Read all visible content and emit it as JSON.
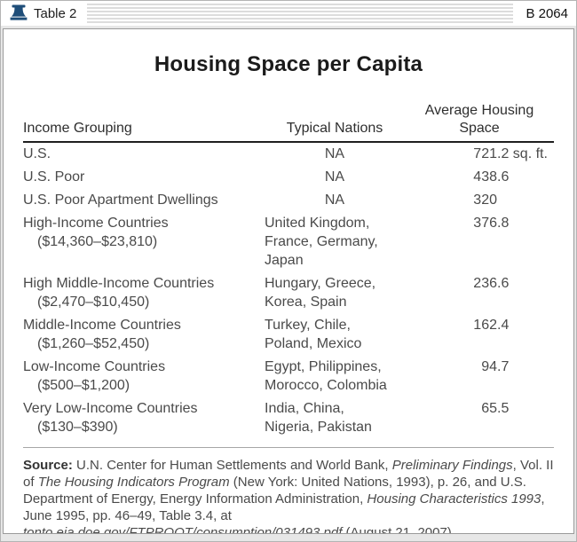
{
  "frame": {
    "bar_left_label": "Table 2",
    "bar_right_label": "B 2064"
  },
  "table": {
    "title": "Housing Space per Capita",
    "col1_header": "Income Grouping",
    "col2_header": "Typical Nations",
    "col3_header_line1": "Average Housing",
    "col3_header_line2": "Space",
    "rows": [
      {
        "grouping": [
          "U.S."
        ],
        "nations": [
          "NA"
        ],
        "value": "721.2 sq. ft."
      },
      {
        "grouping": [
          "U.S. Poor"
        ],
        "nations": [
          "NA"
        ],
        "value": "438.6"
      },
      {
        "grouping": [
          "U.S. Poor Apartment Dwellings"
        ],
        "nations": [
          "NA"
        ],
        "value": "320"
      },
      {
        "grouping": [
          "High-Income Countries",
          "($14,360–$23,810)"
        ],
        "nations": [
          "United Kingdom,",
          "France, Germany, Japan"
        ],
        "value": "376.8"
      },
      {
        "grouping": [
          "High Middle-Income Countries",
          "($2,470–$10,450)"
        ],
        "nations": [
          "Hungary, Greece,",
          "Korea, Spain"
        ],
        "value": "236.6"
      },
      {
        "grouping": [
          "Middle-Income Countries",
          "($1,260–$52,450)"
        ],
        "nations": [
          "Turkey, Chile,",
          "Poland, Mexico"
        ],
        "value": "162.4"
      },
      {
        "grouping": [
          "Low-Income Countries",
          "($500–$1,200)"
        ],
        "nations": [
          "Egypt, Philippines,",
          "Morocco, Colombia"
        ],
        "value": "94.7"
      },
      {
        "grouping": [
          "Very Low-Income Countries",
          "($130–$390)"
        ],
        "nations": [
          "India, China,",
          "Nigeria, Pakistan"
        ],
        "value": "65.5"
      }
    ]
  },
  "source": {
    "segments": [
      {
        "text": "Source:",
        "style": "bold"
      },
      {
        "text": " U.N. Center for Human Settlements and World Bank, ",
        "style": "regular"
      },
      {
        "text": "Preliminary Findings",
        "style": "italic"
      },
      {
        "text": ", Vol. II of ",
        "style": "regular"
      },
      {
        "text": "The Housing Indicators Program",
        "style": "italic"
      },
      {
        "text": " (New York: United Nations, 1993), p. 26, and U.S. Department of Energy, Energy Information Administration, ",
        "style": "regular"
      },
      {
        "text": "Housing Characteristics 1993",
        "style": "italic"
      },
      {
        "text": ", June 1995, pp. 46–49, Table 3.4, at ",
        "style": "regular"
      },
      {
        "text": "tonto.eia.doe.gov/FTPROOT/consumption/031493.pdf",
        "style": "italic"
      },
      {
        "text": " (August 21, 2007).",
        "style": "regular"
      }
    ]
  },
  "chart_data": {
    "type": "table",
    "title": "Housing Space per Capita",
    "columns": [
      "Income Grouping",
      "Typical Nations",
      "Average Housing Space"
    ],
    "rows": [
      [
        "U.S.",
        "NA",
        "721.2 sq. ft."
      ],
      [
        "U.S. Poor",
        "NA",
        "438.6"
      ],
      [
        "U.S. Poor Apartment Dwellings",
        "NA",
        "320"
      ],
      [
        "High-Income Countries ($14,360–$23,810)",
        "United Kingdom, France, Germany, Japan",
        "376.8"
      ],
      [
        "High Middle-Income Countries ($2,470–$10,450)",
        "Hungary, Greece, Korea, Spain",
        "236.6"
      ],
      [
        "Middle-Income Countries ($1,260–$52,450)",
        "Turkey, Chile, Poland, Mexico",
        "162.4"
      ],
      [
        "Low-Income Countries ($500–$1,200)",
        "Egypt, Philippines, Morocco, Colombia",
        "94.7"
      ],
      [
        "Very Low-Income Countries ($130–$390)",
        "India, China, Nigeria, Pakistan",
        "65.5"
      ]
    ]
  },
  "colors": {
    "bell_accent": "#1f4e79",
    "stripe": "#dcdcdc",
    "body_text": "#4a4a4a",
    "title_text": "#1b1b1b",
    "header_rule": "#1f1f1f",
    "source_rule": "#a6a6a6"
  }
}
